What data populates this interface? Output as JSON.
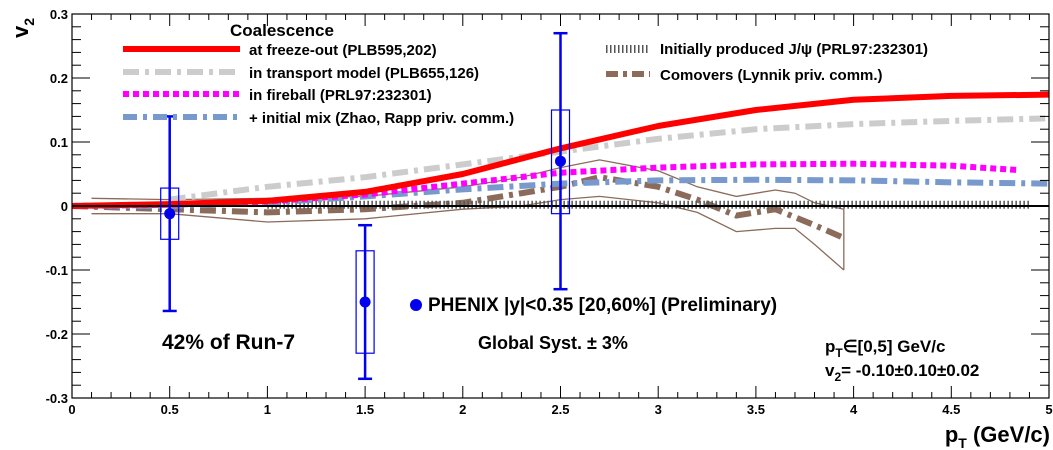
{
  "chart_data": {
    "type": "line",
    "xlim": [
      0,
      5
    ],
    "ylim": [
      -0.3,
      0.3
    ],
    "x_ticks": [
      "0",
      "0.5",
      "1",
      "1.5",
      "2",
      "2.5",
      "3",
      "3.5",
      "4",
      "4.5",
      "5"
    ],
    "y_ticks": [
      "-0.3",
      "-0.2",
      "-0.1",
      "0",
      "0.1",
      "0.2",
      "0.3"
    ],
    "xlabel_main": "p",
    "xlabel_sub": "T",
    "xlabel_unit": " (GeV/c)",
    "ylabel_main": "v",
    "ylabel_sub": "2",
    "legend_header": "Coalescence",
    "series": [
      {
        "name": "at freeze-out (PLB595,202)",
        "color": "#ff0000",
        "style": "solid",
        "x": [
          0.0,
          0.5,
          1.0,
          1.5,
          2.0,
          2.5,
          3.0,
          3.5,
          4.0,
          4.5,
          5.0
        ],
        "y": [
          0.0,
          0.003,
          0.008,
          0.022,
          0.05,
          0.09,
          0.125,
          0.15,
          0.166,
          0.172,
          0.174
        ]
      },
      {
        "name": "in transport model (PLB655,126)",
        "color": "#cccccc",
        "style": "dashdot",
        "x": [
          0.5,
          1.0,
          1.5,
          2.0,
          2.5,
          3.0,
          3.5,
          4.0,
          4.5,
          5.0
        ],
        "y": [
          0.01,
          0.03,
          0.045,
          0.065,
          0.085,
          0.105,
          0.12,
          0.128,
          0.133,
          0.137
        ]
      },
      {
        "name": "in fireball (PRL97:232301)",
        "color": "#ff00ff",
        "style": "dotted",
        "x": [
          0.0,
          0.5,
          1.0,
          1.5,
          2.0,
          2.5,
          3.0,
          3.5,
          4.0,
          4.5,
          4.85
        ],
        "y": [
          0.0,
          0.002,
          0.007,
          0.018,
          0.035,
          0.052,
          0.06,
          0.065,
          0.066,
          0.063,
          0.056
        ]
      },
      {
        "name": "+ initial mix (Zhao, Rapp priv. comm.)",
        "color": "#7799cc",
        "style": "dashdot",
        "x": [
          0.0,
          0.5,
          1.0,
          1.5,
          2.0,
          2.5,
          3.0,
          3.5,
          4.0,
          4.5,
          5.0
        ],
        "y": [
          0.0,
          0.0,
          0.005,
          0.015,
          0.026,
          0.035,
          0.04,
          0.041,
          0.04,
          0.037,
          0.035
        ]
      },
      {
        "name": "Initially produced J/ψ (PRL97:232301)",
        "color": "#555555",
        "style": "finedot",
        "x": [
          1.0,
          2.0,
          3.0,
          4.0,
          4.9
        ],
        "y": [
          0.002,
          0.002,
          0.002,
          0.002,
          0.002
        ]
      },
      {
        "name": "Comovers (Lynnik priv. comm.)",
        "color": "#8b6b5a",
        "style": "dashdot",
        "x": [
          0.0,
          0.5,
          1.0,
          1.5,
          2.0,
          2.5,
          2.7,
          3.0,
          3.2,
          3.4,
          3.6,
          3.8,
          3.95
        ],
        "y": [
          0.0,
          -0.005,
          -0.01,
          -0.005,
          0.005,
          0.03,
          0.045,
          0.03,
          0.01,
          -0.015,
          -0.005,
          -0.03,
          -0.05
        ]
      }
    ],
    "band": {
      "x": [
        0.1,
        0.5,
        1.0,
        1.5,
        2.0,
        2.3,
        2.5,
        2.7,
        3.0,
        3.2,
        3.4,
        3.6,
        3.7,
        3.8,
        3.95
      ],
      "upper": [
        0.012,
        0.01,
        0.012,
        0.015,
        0.03,
        0.045,
        0.06,
        0.072,
        0.055,
        0.03,
        0.015,
        0.025,
        0.02,
        0.005,
        -0.005
      ],
      "lower": [
        -0.012,
        -0.012,
        -0.025,
        -0.02,
        -0.005,
        0.0,
        0.01,
        0.015,
        0.005,
        -0.01,
        -0.04,
        -0.035,
        -0.035,
        -0.06,
        -0.1
      ]
    },
    "data_points": [
      {
        "x": 0.5,
        "y": -0.012,
        "err": 0.152,
        "sys_lo": -0.052,
        "sys_hi": 0.028
      },
      {
        "x": 1.5,
        "y": -0.15,
        "err": 0.12,
        "sys_lo": -0.23,
        "sys_hi": -0.07
      },
      {
        "x": 2.5,
        "y": 0.07,
        "err": 0.2,
        "sys_lo": -0.012,
        "sys_hi": 0.15
      }
    ],
    "data_color": "#0000ee",
    "annotations": {
      "phenix": "PHENIX |y|<0.35 [20,60%] (Preliminary)",
      "run": "42% of Run-7",
      "syst": "Global Syst. ± 3%",
      "pt_range_main": "p",
      "pt_range_sub": "T",
      "pt_range_rest": "∈[0,5] GeV/c",
      "v2_main": "v",
      "v2_sub": "2",
      "v2_rest": "= -0.10±0.10±0.02"
    }
  }
}
